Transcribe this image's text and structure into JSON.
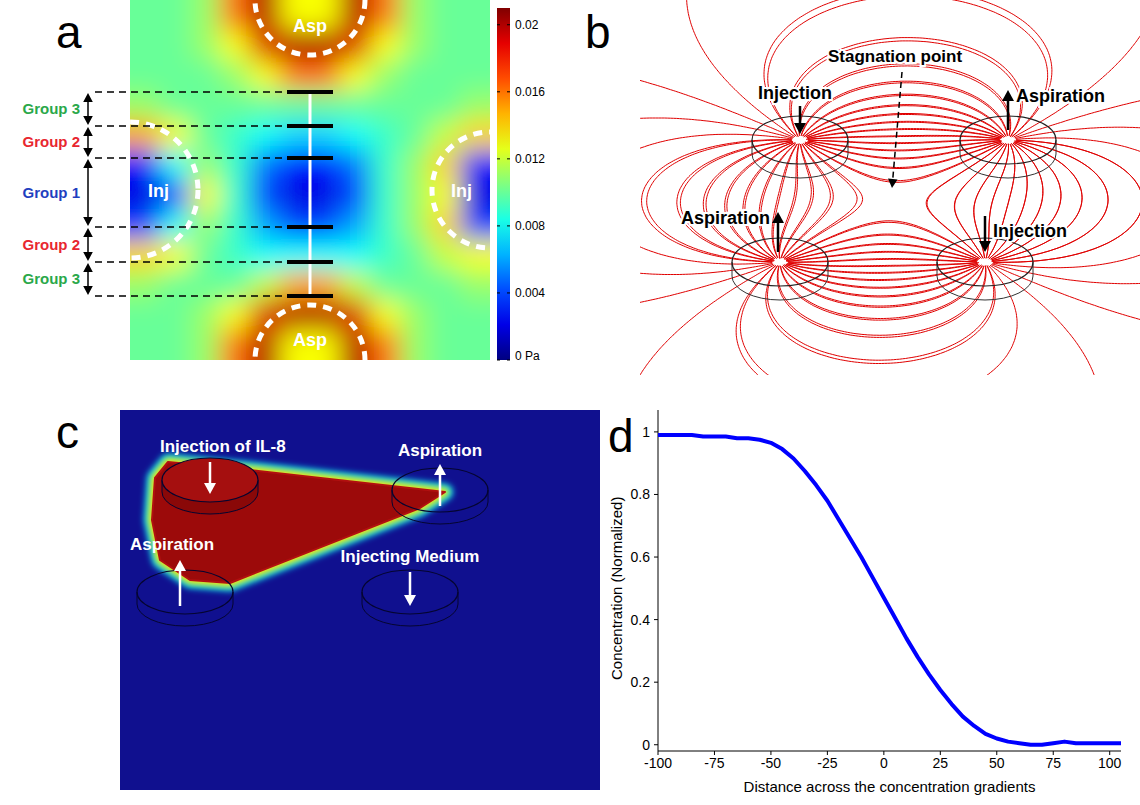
{
  "chart_data": [
    {
      "type": "heatmap",
      "panel_label": "a",
      "cells": [
        [
          0.01,
          0.01,
          0.011,
          0.016,
          0.02,
          0.013,
          0.013,
          0.02,
          0.016,
          0.011,
          0.01,
          0.01
        ],
        [
          0.01,
          0.01,
          0.011,
          0.013,
          0.019,
          0.02,
          0.02,
          0.019,
          0.013,
          0.011,
          0.01,
          0.01
        ],
        [
          0.01,
          0.01,
          0.01,
          0.011,
          0.013,
          0.016,
          0.016,
          0.013,
          0.011,
          0.01,
          0.01,
          0.01
        ],
        [
          0.011,
          0.01,
          0.01,
          0.01,
          0.01,
          0.01,
          0.01,
          0.01,
          0.01,
          0.01,
          0.01,
          0.011
        ],
        [
          0.015,
          0.013,
          0.01,
          0.009,
          0.008,
          0.007,
          0.007,
          0.008,
          0.009,
          0.01,
          0.012,
          0.014
        ],
        [
          0.003,
          0.008,
          0.011,
          0.009,
          0.005,
          0.003,
          0.003,
          0.005,
          0.009,
          0.011,
          0.014,
          0.003
        ],
        [
          0.002,
          0.004,
          0.013,
          0.009,
          0.004,
          0.002,
          0.002,
          0.004,
          0.009,
          0.011,
          0.013,
          0.002
        ],
        [
          0.004,
          0.008,
          0.011,
          0.009,
          0.006,
          0.004,
          0.004,
          0.006,
          0.009,
          0.011,
          0.014,
          0.004
        ],
        [
          0.014,
          0.013,
          0.01,
          0.009,
          0.008,
          0.008,
          0.008,
          0.008,
          0.009,
          0.01,
          0.012,
          0.013
        ],
        [
          0.011,
          0.01,
          0.01,
          0.01,
          0.012,
          0.015,
          0.015,
          0.012,
          0.01,
          0.01,
          0.01,
          0.011
        ],
        [
          0.01,
          0.01,
          0.011,
          0.013,
          0.019,
          0.02,
          0.02,
          0.019,
          0.013,
          0.011,
          0.01,
          0.01
        ],
        [
          0.01,
          0.01,
          0.011,
          0.016,
          0.02,
          0.013,
          0.013,
          0.02,
          0.016,
          0.011,
          0.01,
          0.01
        ]
      ],
      "colorbar_lim": [
        0,
        0.021
      ],
      "colorbar_ticks": [
        {
          "value": 0,
          "label": "0 Pa"
        },
        0.004,
        0.008,
        0.012,
        0.016,
        0.02
      ],
      "annotations": [
        "Asp",
        "Asp",
        "Inj",
        "Inj"
      ],
      "groups": [
        {
          "label": "Group 3",
          "color": "#2aa84a"
        },
        {
          "label": "Group 2",
          "color": "#e8262f"
        },
        {
          "label": "Group 1",
          "color": "#1f3fbf"
        },
        {
          "label": "Group 2",
          "color": "#e8262f"
        },
        {
          "label": "Group 3",
          "color": "#2aa84a"
        }
      ]
    },
    {
      "type": "line",
      "panel_label": "d",
      "x": [
        -100,
        -95,
        -90,
        -85,
        -80,
        -75,
        -70,
        -65,
        -60,
        -55,
        -50,
        -45,
        -40,
        -35,
        -30,
        -25,
        -20,
        -15,
        -10,
        -5,
        0,
        5,
        10,
        15,
        20,
        25,
        30,
        35,
        40,
        45,
        50,
        55,
        60,
        65,
        70,
        75,
        80,
        85,
        90,
        95,
        100,
        105
      ],
      "values": [
        0.99,
        0.99,
        0.99,
        0.99,
        0.985,
        0.985,
        0.985,
        0.98,
        0.98,
        0.975,
        0.965,
        0.945,
        0.915,
        0.875,
        0.83,
        0.78,
        0.72,
        0.66,
        0.6,
        0.535,
        0.47,
        0.405,
        0.34,
        0.28,
        0.225,
        0.175,
        0.13,
        0.09,
        0.06,
        0.035,
        0.02,
        0.01,
        0.005,
        0.0,
        0.0,
        0.005,
        0.01,
        0.005,
        0.005,
        0.005,
        0.005,
        0.005
      ],
      "color": "#0000ff",
      "xlim": [
        -100,
        105
      ],
      "ylim": [
        -0.02,
        1.07
      ],
      "xticks": [
        -100,
        -75,
        -50,
        -25,
        0,
        25,
        50,
        75,
        100
      ],
      "yticks": [
        0,
        0.2,
        0.4,
        0.6,
        0.8,
        1
      ],
      "grid": false,
      "x_label": "Distance across the concentration gradients",
      "y_label": "Concentration (Normalized)"
    }
  ],
  "diagrams": [
    {
      "panel_label": "b",
      "labels": [
        "Injection",
        "Aspiration",
        "Aspiration",
        "Injection"
      ],
      "stagnation_label": "Stagnation point"
    },
    {
      "panel_label": "c",
      "labels": [
        "Injection of IL-8",
        "Aspiration",
        "Aspiration",
        "Injecting Medium"
      ]
    }
  ]
}
